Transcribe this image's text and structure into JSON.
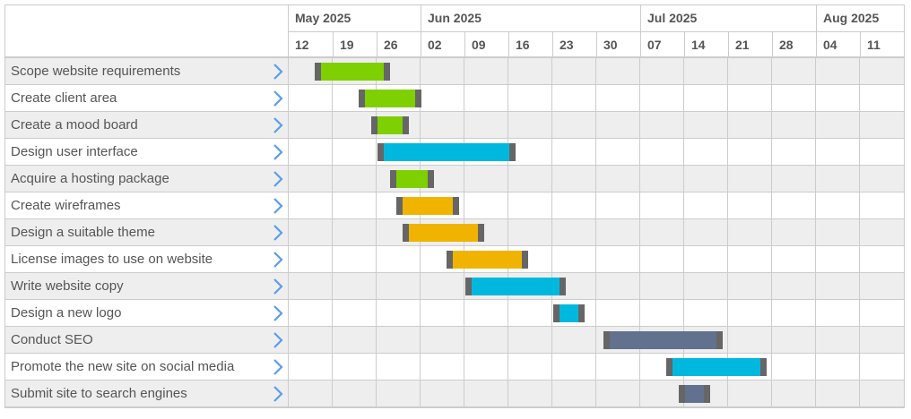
{
  "gantt": {
    "months": [
      {
        "label": "May 2025",
        "start_col": 0,
        "span": 3
      },
      {
        "label": "Jun 2025",
        "start_col": 3,
        "span": 5
      },
      {
        "label": "Jul 2025",
        "start_col": 8,
        "span": 4
      },
      {
        "label": "Aug 2025",
        "start_col": 12,
        "span": 2
      }
    ],
    "weeks": [
      "12",
      "19",
      "26",
      "02",
      "09",
      "16",
      "23",
      "30",
      "07",
      "14",
      "21",
      "28",
      "04",
      "11"
    ],
    "colors": {
      "green": "#7ed000",
      "blue": "#00b8de",
      "yellow": "#f0b400",
      "slate": "#62728e",
      "handle": "#666666",
      "chevron": "#5b9cf0"
    },
    "tasks": [
      {
        "label": "Scope website requirements",
        "start": "2025-05-16",
        "end": "2025-05-28",
        "color": "green"
      },
      {
        "label": "Create client area",
        "start": "2025-05-23",
        "end": "2025-06-02",
        "color": "green"
      },
      {
        "label": "Create a mood board",
        "start": "2025-05-25",
        "end": "2025-05-31",
        "color": "green"
      },
      {
        "label": "Design user interface",
        "start": "2025-05-26",
        "end": "2025-06-17",
        "color": "blue"
      },
      {
        "label": "Acquire a hosting package",
        "start": "2025-05-28",
        "end": "2025-06-04",
        "color": "green"
      },
      {
        "label": "Create wireframes",
        "start": "2025-05-29",
        "end": "2025-06-08",
        "color": "yellow"
      },
      {
        "label": "Design a suitable theme",
        "start": "2025-05-30",
        "end": "2025-06-12",
        "color": "yellow"
      },
      {
        "label": "License images to use on website",
        "start": "2025-06-06",
        "end": "2025-06-19",
        "color": "yellow"
      },
      {
        "label": "Write website copy",
        "start": "2025-06-09",
        "end": "2025-06-25",
        "color": "blue"
      },
      {
        "label": "Design a new logo",
        "start": "2025-06-23",
        "end": "2025-06-28",
        "color": "blue"
      },
      {
        "label": "Conduct SEO",
        "start": "2025-07-01",
        "end": "2025-07-20",
        "color": "slate"
      },
      {
        "label": "Promote the new site on social media",
        "start": "2025-07-11",
        "end": "2025-07-27",
        "color": "blue"
      },
      {
        "label": "Submit site to search engines",
        "start": "2025-07-13",
        "end": "2025-07-18",
        "color": "slate"
      }
    ]
  },
  "chart_data": {
    "type": "gantt",
    "title": "",
    "x_axis": {
      "months": [
        "May 2025",
        "Jun 2025",
        "Jul 2025",
        "Aug 2025"
      ],
      "week_ticks": [
        "12",
        "19",
        "26",
        "02",
        "09",
        "16",
        "23",
        "30",
        "07",
        "14",
        "21",
        "28",
        "04",
        "11"
      ],
      "range": [
        "2025-05-12",
        "2025-08-18"
      ]
    },
    "categories": [
      "Scope website requirements",
      "Create client area",
      "Create a mood board",
      "Design user interface",
      "Acquire a hosting package",
      "Create wireframes",
      "Design a suitable theme",
      "License images to use on website",
      "Write website copy",
      "Design a new logo",
      "Conduct SEO",
      "Promote the new site on social media",
      "Submit site to search engines"
    ],
    "series": [
      {
        "name": "Scope website requirements",
        "start": "2025-05-16",
        "end": "2025-05-28",
        "color": "#7ed000"
      },
      {
        "name": "Create client area",
        "start": "2025-05-23",
        "end": "2025-06-02",
        "color": "#7ed000"
      },
      {
        "name": "Create a mood board",
        "start": "2025-05-25",
        "end": "2025-05-31",
        "color": "#7ed000"
      },
      {
        "name": "Design user interface",
        "start": "2025-05-26",
        "end": "2025-06-17",
        "color": "#00b8de"
      },
      {
        "name": "Acquire a hosting package",
        "start": "2025-05-28",
        "end": "2025-06-04",
        "color": "#7ed000"
      },
      {
        "name": "Create wireframes",
        "start": "2025-05-29",
        "end": "2025-06-08",
        "color": "#f0b400"
      },
      {
        "name": "Design a suitable theme",
        "start": "2025-05-30",
        "end": "2025-06-12",
        "color": "#f0b400"
      },
      {
        "name": "License images to use on website",
        "start": "2025-06-06",
        "end": "2025-06-19",
        "color": "#f0b400"
      },
      {
        "name": "Write website copy",
        "start": "2025-06-09",
        "end": "2025-06-25",
        "color": "#00b8de"
      },
      {
        "name": "Design a new logo",
        "start": "2025-06-23",
        "end": "2025-06-28",
        "color": "#00b8de"
      },
      {
        "name": "Conduct SEO",
        "start": "2025-07-01",
        "end": "2025-07-20",
        "color": "#62728e"
      },
      {
        "name": "Promote the new site on social media",
        "start": "2025-07-11",
        "end": "2025-07-27",
        "color": "#00b8de"
      },
      {
        "name": "Submit site to search engines",
        "start": "2025-07-13",
        "end": "2025-07-18",
        "color": "#62728e"
      }
    ],
    "grid": true,
    "legend": "none"
  }
}
